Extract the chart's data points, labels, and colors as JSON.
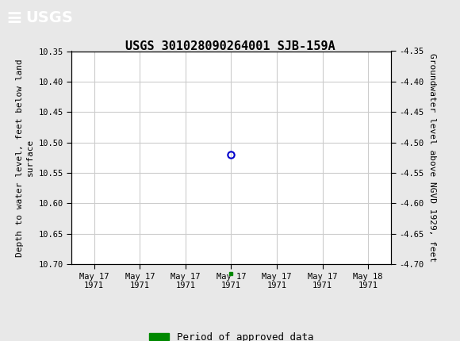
{
  "title": "USGS 301028090264001 SJB-159A",
  "ylabel_left": "Depth to water level, feet below land\nsurface",
  "ylabel_right": "Groundwater level above NGVD 1929, feet",
  "ylim_left": [
    10.35,
    10.7
  ],
  "ylim_right": [
    -4.35,
    -4.7
  ],
  "yticks_left": [
    10.35,
    10.4,
    10.45,
    10.5,
    10.55,
    10.6,
    10.65,
    10.7
  ],
  "yticks_right": [
    -4.35,
    -4.4,
    -4.45,
    -4.5,
    -4.55,
    -4.6,
    -4.65,
    -4.7
  ],
  "xlim": [
    -0.5,
    6.5
  ],
  "xtick_labels": [
    "May 17\n1971",
    "May 17\n1971",
    "May 17\n1971",
    "May 17\n1971",
    "May 17\n1971",
    "May 17\n1971",
    "May 18\n1971"
  ],
  "xtick_positions": [
    0,
    1,
    2,
    3,
    4,
    5,
    6
  ],
  "data_point_x": 3,
  "data_point_y": 10.52,
  "data_point_color": "#0000cc",
  "green_marker_x": 3,
  "green_marker_y": 10.715,
  "green_marker_color": "#008800",
  "legend_label": "Period of approved data",
  "legend_color": "#008800",
  "header_bg_color": "#006633",
  "bg_color": "#e8e8e8",
  "plot_bg_color": "#ffffff",
  "grid_color": "#cccccc",
  "title_fontsize": 11,
  "axis_label_fontsize": 8,
  "tick_fontsize": 7.5,
  "legend_fontsize": 9
}
